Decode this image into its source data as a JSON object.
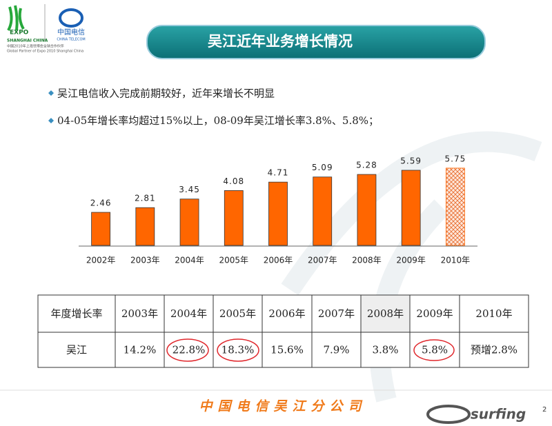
{
  "header": {
    "logo_expo": "EXPO",
    "logo_expo_sub": "SHANGHAI CHINA",
    "logo_telecom": "中国电信",
    "logo_telecom_sub": "CHINA TELECOM",
    "partner_cn": "中国2010年上海世博会全球合作伙伴",
    "partner_en": "Global Partner of Expo 2010 Shanghai China"
  },
  "title": "吴江近年业务增长情况",
  "bullets": [
    "吴江电信收入完成前期较好，近年来增长不明显",
    "04-05年增长率均超过15%以上，08-09年吴江增长率3.8%、5.8%；"
  ],
  "chart_data": {
    "type": "bar",
    "categories": [
      "2002年",
      "2003年",
      "2004年",
      "2005年",
      "2006年",
      "2007年",
      "2008年",
      "2009年",
      "2010年"
    ],
    "values": [
      2.46,
      2.81,
      3.45,
      4.08,
      4.71,
      5.09,
      5.28,
      5.59,
      5.75
    ],
    "color": "#ff6600",
    "hatch": [
      false,
      false,
      false,
      false,
      false,
      false,
      false,
      false,
      true
    ],
    "ylim": [
      0,
      6
    ]
  },
  "table": {
    "header": [
      "年度增长率",
      "2003年",
      "2004年",
      "2005年",
      "2006年",
      "2007年",
      "2008年",
      "2009年",
      "2010年"
    ],
    "rows": [
      [
        "吴江",
        "14.2%",
        "22.8%",
        "18.3%",
        "15.6%",
        "7.9%",
        "3.8%",
        "5.8%",
        "预增2.8%"
      ]
    ]
  },
  "footer": {
    "company": "中国电信吴江分公司",
    "page": "2",
    "brand": "surfing"
  }
}
